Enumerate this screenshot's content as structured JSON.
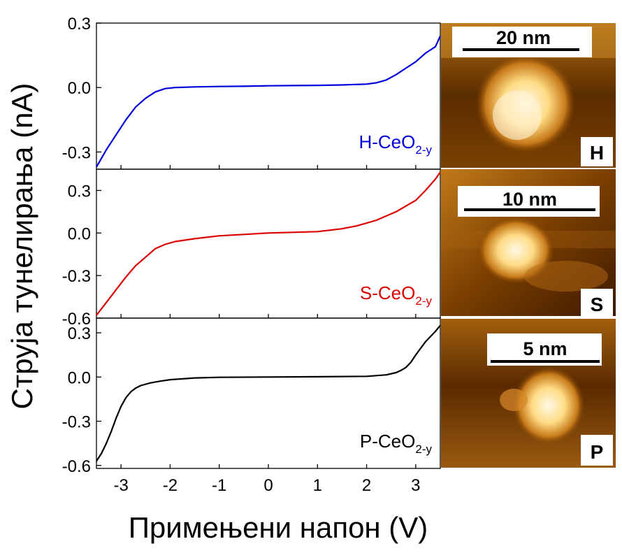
{
  "chart_data": {
    "type": "line",
    "xlabel": "Примењени напон (V)",
    "ylabel": "Струја тунелирања (nA)",
    "xlim": [
      -3.5,
      3.5
    ],
    "x_ticks": [
      -3,
      -2,
      -1,
      0,
      1,
      2,
      3
    ],
    "panels": [
      {
        "label_main": "H-CeO",
        "label_sub": "2-y",
        "color": "#0000dd",
        "ylim": [
          -0.38,
          0.3
        ],
        "y_ticks": [
          "0.3",
          "0.0",
          "-0.3"
        ],
        "y_tick_values": [
          0.3,
          0.0,
          -0.3
        ],
        "x": [
          -3.5,
          -3.3,
          -3.1,
          -2.9,
          -2.7,
          -2.5,
          -2.3,
          -2.1,
          -1.9,
          -1.5,
          -1.0,
          -0.5,
          0.0,
          0.5,
          1.0,
          1.5,
          2.0,
          2.2,
          2.4,
          2.6,
          2.8,
          3.0,
          3.2,
          3.4,
          3.5
        ],
        "y": [
          -0.37,
          -0.29,
          -0.22,
          -0.15,
          -0.09,
          -0.05,
          -0.02,
          -0.005,
          0.0,
          0.003,
          0.005,
          0.006,
          0.008,
          0.009,
          0.01,
          0.012,
          0.016,
          0.022,
          0.035,
          0.06,
          0.09,
          0.12,
          0.16,
          0.19,
          0.24
        ],
        "image_scale": "20 nm",
        "image_badge": "H"
      },
      {
        "label_main": "S-CeO",
        "label_sub": "2-y",
        "color": "#dd0000",
        "ylim": [
          -0.6,
          0.45
        ],
        "y_ticks": [
          "0.3",
          "0.0",
          "-0.3",
          "-0.6"
        ],
        "y_tick_values": [
          0.3,
          0.0,
          -0.3,
          -0.6
        ],
        "x": [
          -3.5,
          -3.3,
          -3.1,
          -2.9,
          -2.7,
          -2.5,
          -2.3,
          -2.1,
          -1.9,
          -1.5,
          -1.0,
          -0.5,
          0.0,
          0.5,
          1.0,
          1.5,
          1.8,
          2.0,
          2.2,
          2.4,
          2.6,
          2.8,
          3.0,
          3.2,
          3.4,
          3.5
        ],
        "y": [
          -0.58,
          -0.49,
          -0.4,
          -0.31,
          -0.23,
          -0.17,
          -0.11,
          -0.08,
          -0.06,
          -0.04,
          -0.02,
          -0.01,
          0.0,
          0.005,
          0.01,
          0.03,
          0.05,
          0.07,
          0.09,
          0.12,
          0.15,
          0.19,
          0.23,
          0.3,
          0.38,
          0.43
        ],
        "image_scale": "10 nm",
        "image_badge": "S"
      },
      {
        "label_main": "P-CeO",
        "label_sub": "2-y",
        "color": "#000000",
        "ylim": [
          -0.62,
          0.4
        ],
        "y_ticks": [
          "0.3",
          "0.0",
          "-0.3",
          "-0.6"
        ],
        "y_tick_values": [
          0.3,
          0.0,
          -0.3,
          -0.6
        ],
        "x": [
          -3.5,
          -3.4,
          -3.3,
          -3.2,
          -3.1,
          -3.0,
          -2.9,
          -2.8,
          -2.7,
          -2.6,
          -2.4,
          -2.2,
          -2.0,
          -1.5,
          -1.0,
          0.0,
          1.0,
          2.0,
          2.4,
          2.6,
          2.7,
          2.8,
          2.9,
          3.0,
          3.2,
          3.4,
          3.5
        ],
        "y": [
          -0.57,
          -0.52,
          -0.45,
          -0.37,
          -0.28,
          -0.2,
          -0.14,
          -0.1,
          -0.075,
          -0.058,
          -0.04,
          -0.028,
          -0.018,
          -0.006,
          -0.002,
          0.0,
          0.002,
          0.005,
          0.015,
          0.03,
          0.045,
          0.065,
          0.1,
          0.15,
          0.24,
          0.31,
          0.35
        ],
        "image_scale": "5 nm",
        "image_badge": "P"
      }
    ],
    "colors": {
      "stm_dark": "#2a1200",
      "stm_mid": "#8a4600",
      "stm_bright": "#ffd27a",
      "stm_white": "#fff6e0"
    }
  }
}
